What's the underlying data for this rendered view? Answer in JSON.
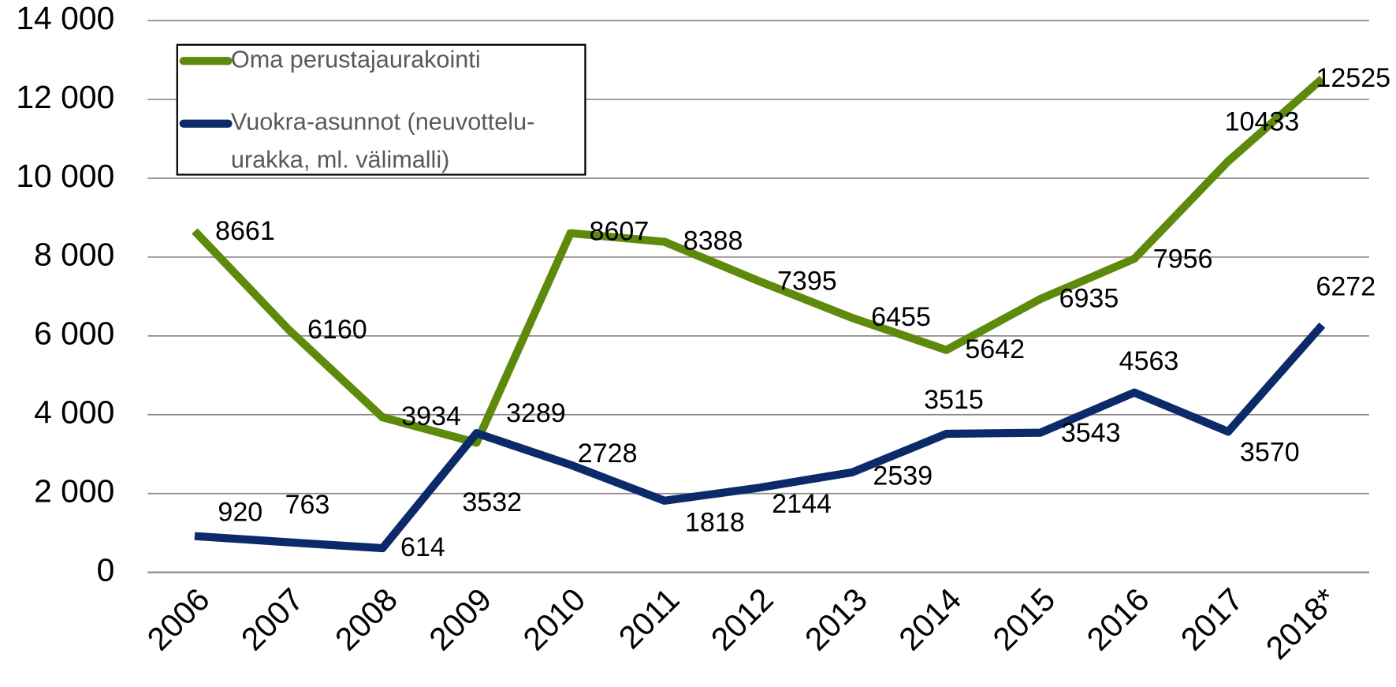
{
  "chart_data": {
    "type": "line",
    "categories": [
      "2006",
      "2007",
      "2008",
      "2009",
      "2010",
      "2011",
      "2012",
      "2013",
      "2014",
      "2015",
      "2016",
      "2017",
      "2018*"
    ],
    "series": [
      {
        "name": "Oma perustajaurakointi",
        "color": "#5e8a0c",
        "values": [
          8661,
          6160,
          3934,
          3289,
          8607,
          8388,
          7395,
          6455,
          5642,
          6935,
          7956,
          10433,
          12525
        ]
      },
      {
        "name": "Vuokra-asunnot (neuvottelu-urakka, ml. välimalli)",
        "color": "#0c2a6a",
        "values": [
          920,
          763,
          614,
          3532,
          2728,
          1818,
          2144,
          2539,
          3515,
          3543,
          4563,
          3570,
          6272
        ]
      }
    ],
    "ylim": [
      0,
      14000
    ],
    "yticks": [
      0,
      {
        "value": 2000,
        "label": "2 000"
      },
      {
        "value": 4000,
        "label": "4 000"
      },
      {
        "value": 6000,
        "label": "6 000"
      },
      {
        "value": 8000,
        "label": "8 000"
      },
      {
        "value": 10000,
        "label": "10 000"
      },
      {
        "value": 12000,
        "label": "12 000"
      },
      {
        "value": 14000,
        "label": "14 000"
      }
    ],
    "grid": true,
    "legend": "upper left"
  }
}
